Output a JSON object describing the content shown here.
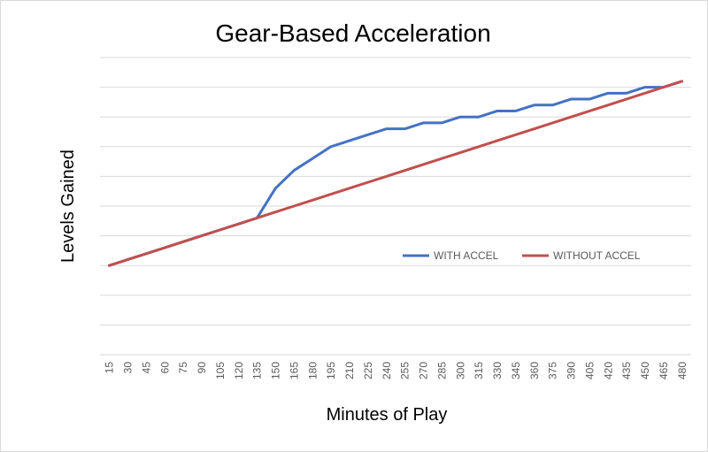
{
  "chart_data": {
    "type": "line",
    "title": "Gear-Based Acceleration",
    "xlabel": "Minutes of Play",
    "ylabel": "Levels Gained",
    "x": [
      15,
      30,
      45,
      60,
      75,
      90,
      105,
      120,
      135,
      150,
      165,
      180,
      195,
      210,
      225,
      240,
      255,
      270,
      285,
      300,
      315,
      330,
      345,
      360,
      375,
      390,
      405,
      420,
      435,
      450,
      465,
      480
    ],
    "ylim": [
      0,
      10
    ],
    "grid": true,
    "legend_position": "center-right",
    "series": [
      {
        "name": "WITH ACCEL",
        "color": "#4472C4",
        "values": [
          3.0,
          3.2,
          3.4,
          3.6,
          3.8,
          4.0,
          4.2,
          4.4,
          4.6,
          5.6,
          6.2,
          6.6,
          7.0,
          7.2,
          7.4,
          7.6,
          7.6,
          7.8,
          7.8,
          8.0,
          8.0,
          8.2,
          8.2,
          8.4,
          8.4,
          8.6,
          8.6,
          8.8,
          8.8,
          9.0,
          9.0,
          9.2
        ]
      },
      {
        "name": "WITHOUT ACCEL",
        "color": "#C0504D",
        "values": [
          3.0,
          3.2,
          3.4,
          3.6,
          3.8,
          4.0,
          4.2,
          4.4,
          4.6,
          4.8,
          5.0,
          5.2,
          5.4,
          5.6,
          5.8,
          6.0,
          6.2,
          6.4,
          6.6,
          6.8,
          7.0,
          7.2,
          7.4,
          7.6,
          7.8,
          8.0,
          8.2,
          8.4,
          8.6,
          8.8,
          9.0,
          9.2
        ]
      }
    ]
  }
}
